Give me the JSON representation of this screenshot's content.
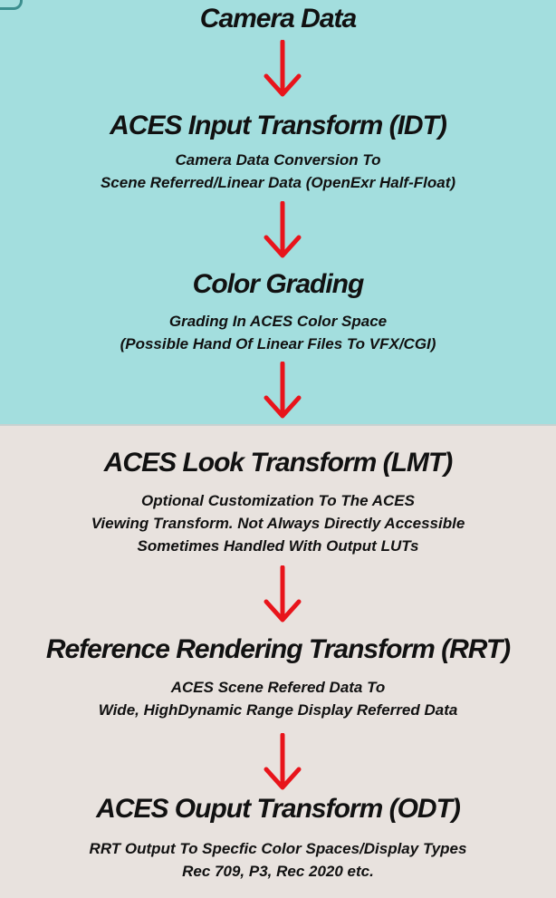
{
  "steps": [
    {
      "title": "Camera Data",
      "lines": []
    },
    {
      "title": "ACES Input Transform (IDT)",
      "lines": [
        "Camera Data Conversion To",
        "Scene Referred/Linear Data (OpenExr Half-Float)"
      ]
    },
    {
      "title": "Color Grading",
      "lines": [
        "Grading In ACES Color Space",
        "(Possible Hand Of Linear Files To VFX/CGI)"
      ]
    },
    {
      "title": "ACES Look Transform (LMT)",
      "lines": [
        "Optional Customization To The ACES",
        "Viewing Transform. Not Always Directly Accessible",
        "Sometimes Handled With Output LUTs"
      ]
    },
    {
      "title": "Reference Rendering Transform (RRT)",
      "lines": [
        "ACES Scene Refered Data To",
        "Wide, HighDynamic Range  Display Referred Data"
      ]
    },
    {
      "title": "ACES Ouput Transform (ODT)",
      "lines": [
        "RRT Output To Specfic Color Spaces/Display Types",
        "Rec 709, P3, Rec 2020 etc."
      ]
    }
  ],
  "colors": {
    "top_background": "#a3dede",
    "bottom_background": "#e8e2de",
    "arrow": "#e8141b",
    "text": "#111111"
  },
  "icons": {
    "arrow": "red-down-arrow-icon"
  }
}
